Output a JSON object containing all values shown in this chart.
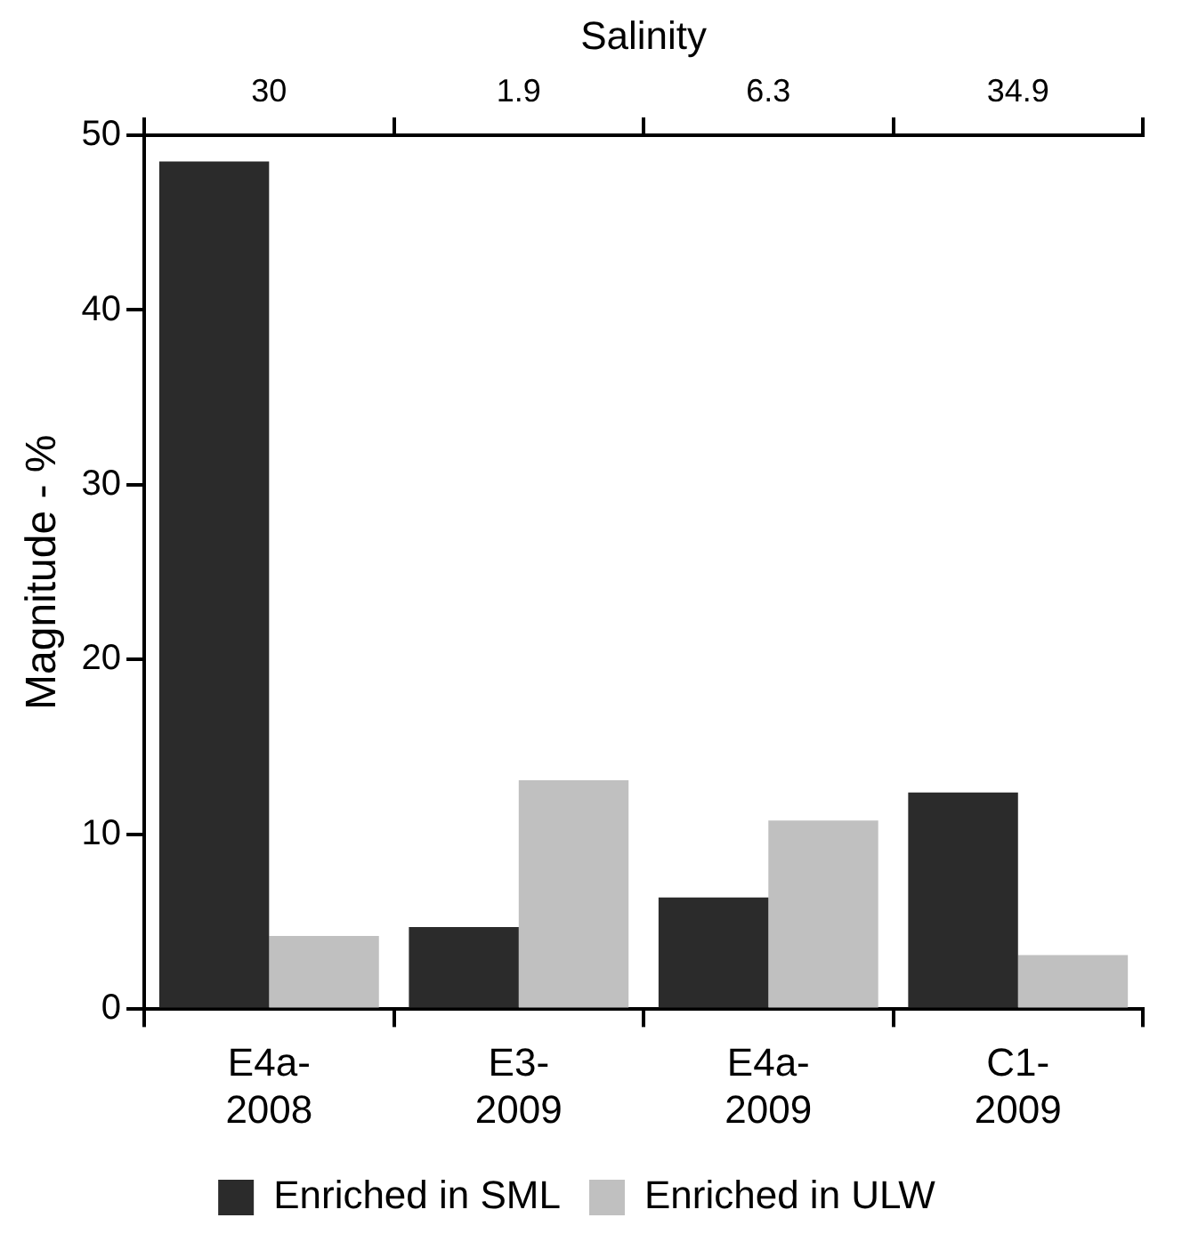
{
  "chart_data": {
    "type": "bar",
    "ylabel": "Magnitude - %",
    "x2label": "Salinity",
    "categories": [
      "E4a-2008",
      "E3-2009",
      "E4a-2009",
      "C1-2009"
    ],
    "series": [
      {
        "name": "Enriched in SML",
        "color": "#2b2b2b",
        "values": [
          48.5,
          4.7,
          6.4,
          12.4
        ]
      },
      {
        "name": "Enriched in ULW",
        "color": "#c0c0c0",
        "values": [
          4.2,
          13.1,
          10.8,
          3.1
        ]
      }
    ],
    "ylim": [
      0,
      50
    ],
    "yticks": [
      0,
      10,
      20,
      30,
      40,
      50
    ],
    "annotations": [
      "30",
      "1.9",
      "6.3",
      "34.9"
    ],
    "grid": false,
    "legend": "bottom"
  }
}
